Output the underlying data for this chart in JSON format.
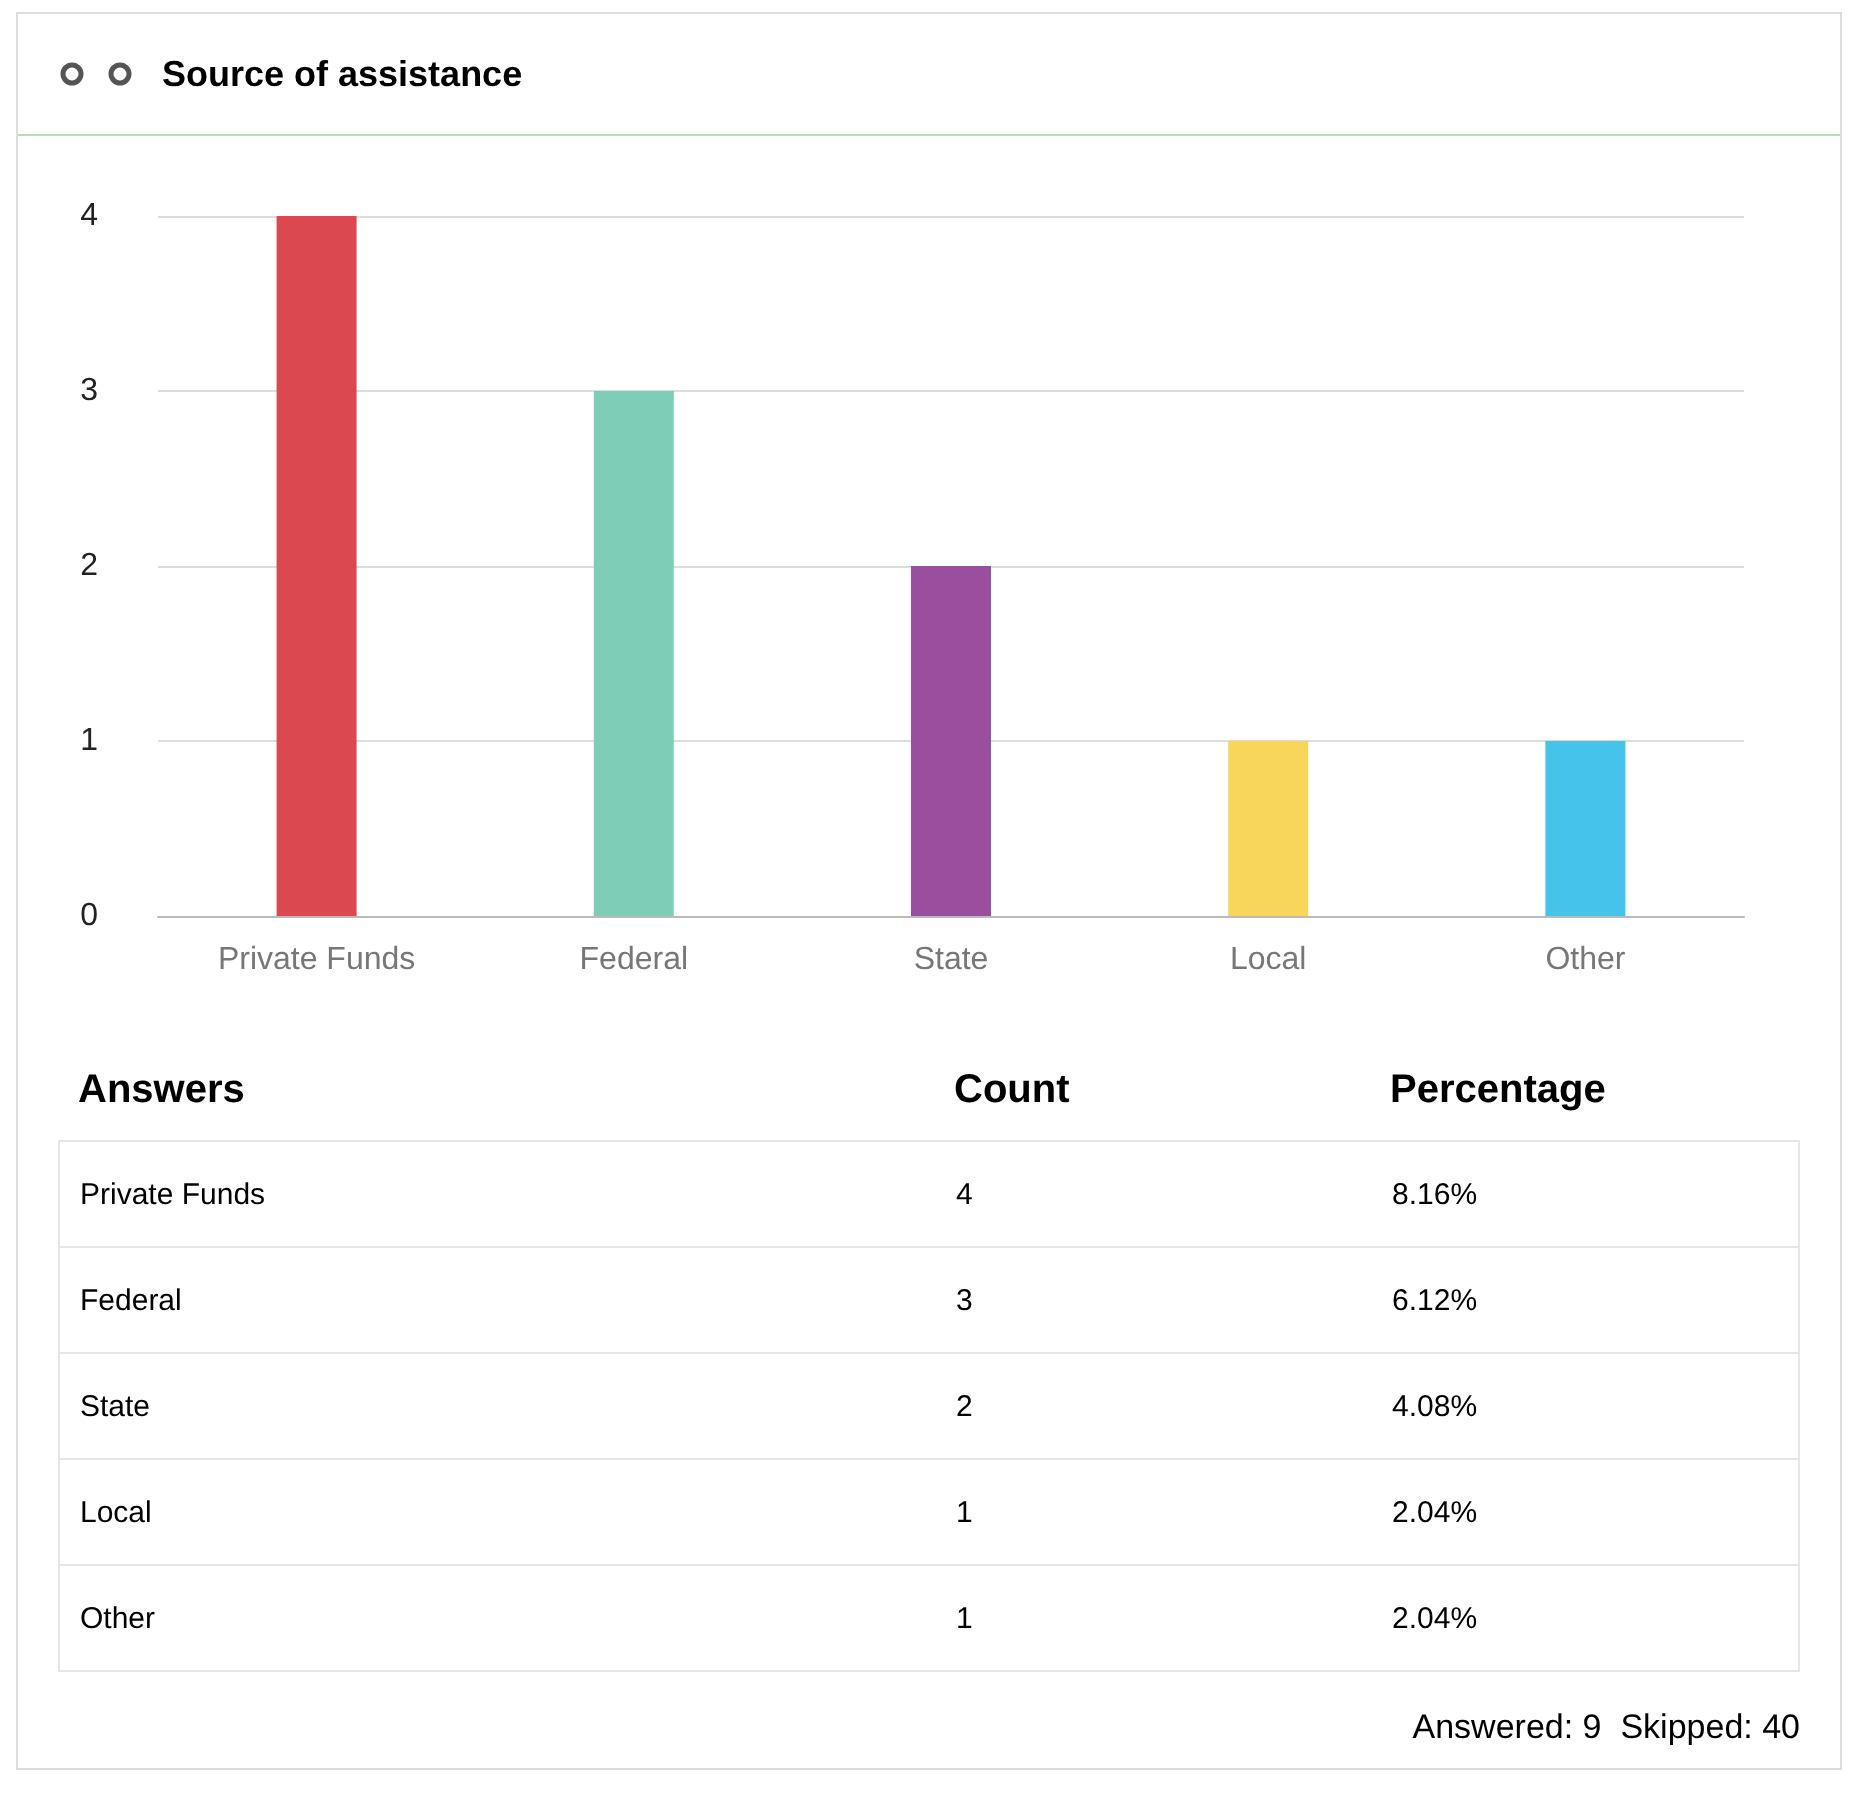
{
  "chart_data": {
    "type": "bar",
    "title": "Source of assistance",
    "categories": [
      "Private Funds",
      "Federal",
      "State",
      "Local",
      "Other"
    ],
    "values": [
      4,
      3,
      2,
      1,
      1
    ],
    "colors": [
      "#dc4850",
      "#7ecdb6",
      "#9a4f9e",
      "#f8d65a",
      "#45c3e8"
    ],
    "ylim": [
      0,
      4
    ],
    "yticks": [
      0,
      1,
      2,
      3,
      4
    ],
    "grid": "y",
    "annotations": [
      "Answers",
      "Count",
      "Percentage",
      "4",
      "8.16%",
      "3",
      "6.12%",
      "2",
      "4.08%",
      "1",
      "2.04%",
      "1",
      "2.04%",
      "Answered: 9  Skipped: 40"
    ]
  }
}
